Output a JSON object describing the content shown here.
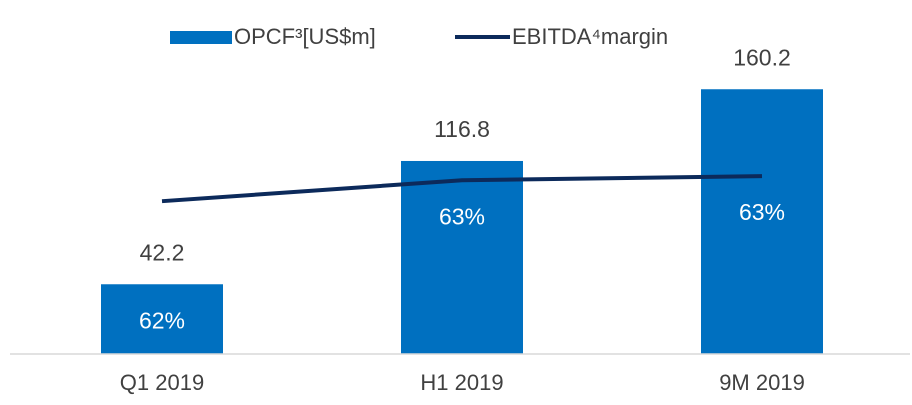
{
  "chart_data": {
    "type": "bar_line",
    "categories": [
      "Q1 2019",
      "H1 2019",
      "9M 2019"
    ],
    "series": [
      {
        "name": "OPCF³[US$m]",
        "type": "bar",
        "color": "#0070c0",
        "values": [
          42.2,
          116.8,
          160.2
        ]
      },
      {
        "name": "EBITDA⁴margin",
        "type": "line",
        "axis": "y2",
        "color": "#0c2a5b",
        "values": [
          62.3,
          63.3,
          63.5
        ],
        "value_labels": [
          "62%",
          "63%",
          "63%"
        ]
      }
    ],
    "ylim": [
      0,
      190
    ],
    "y2lim": [
      55,
      70
    ],
    "legend": "top",
    "grid": false
  }
}
